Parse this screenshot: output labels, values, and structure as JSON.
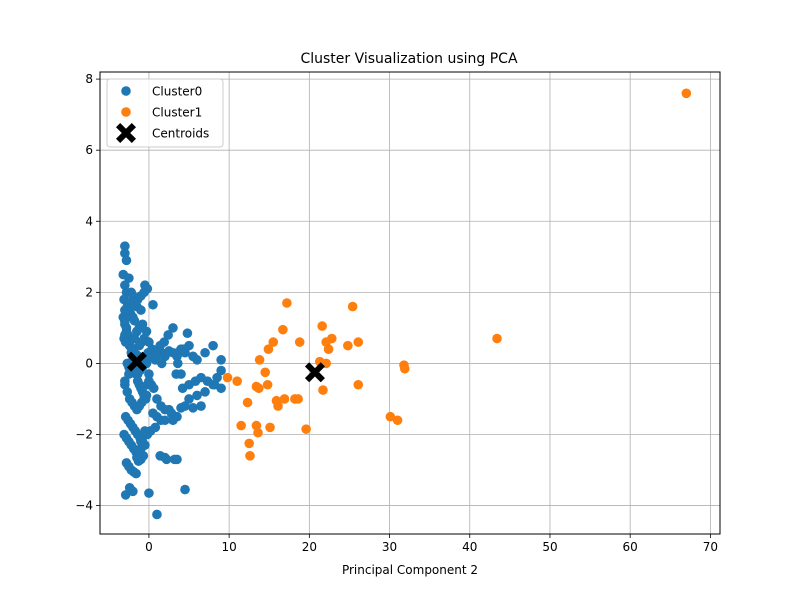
{
  "chart_data": {
    "type": "scatter",
    "title": "Cluster Visualization using PCA",
    "xlabel": "Principal Component 2",
    "ylabel": "",
    "xlim": [
      -6.1,
      71.2
    ],
    "ylim": [
      -4.8,
      8.2
    ],
    "xticks": [
      0,
      10,
      20,
      30,
      40,
      50,
      60,
      70
    ],
    "yticks": [
      -4,
      -2,
      0,
      2,
      4,
      6,
      8
    ],
    "grid": true,
    "legend_position": "top-left",
    "series": [
      {
        "name": "Cluster0",
        "color": "#1f77b4",
        "marker": "circle",
        "x": [
          -3.0,
          -3.0,
          -2.8,
          -3.2,
          -2.5,
          -3.0,
          -2.2,
          -2.8,
          -3.1,
          -2.0,
          -2.5,
          -2.7,
          -3.0,
          -2.3,
          -1.5,
          -1.0,
          -2.0,
          -3.0,
          -1.8,
          -1.2,
          -0.8,
          -1.5,
          0.5,
          -0.5,
          -2.8,
          -2.6,
          -3.1,
          -2.9,
          -2.4,
          -2.1,
          -1.9,
          -1.6,
          -1.3,
          -1.0,
          -0.7,
          -0.4,
          -0.1,
          0.2,
          -2.7,
          -2.5,
          -2.3,
          -2.0,
          -1.7,
          -1.4,
          -1.1,
          -0.8,
          -0.5,
          -0.2,
          0.1,
          0.4,
          0.8,
          1.2,
          1.6,
          2.0,
          2.5,
          3.0,
          3.5,
          4.0,
          4.5,
          5.0,
          5.5,
          6.0,
          7.0,
          8.0,
          9.0,
          -3.2,
          -3.0,
          -2.8,
          -2.6,
          -2.4,
          -2.2,
          -2.0,
          -1.8,
          -1.6,
          -1.4,
          -1.2,
          -1.0,
          -0.8,
          -0.6,
          -0.4,
          -0.2,
          0.0,
          -3.0,
          -2.7,
          -2.4,
          -2.1,
          -1.8,
          -1.5,
          -1.2,
          -0.9,
          -0.6,
          -0.3,
          0.0,
          0.3,
          0.6,
          1.0,
          1.5,
          2.0,
          2.5,
          3.0,
          3.5,
          4.0,
          4.5,
          5.0,
          5.5,
          6.0,
          6.5,
          7.0,
          8.0,
          8.5,
          9.0,
          -2.9,
          -2.6,
          -2.3,
          -2.0,
          -1.7,
          -1.4,
          -1.1,
          -0.8,
          -0.5,
          -0.2,
          0.5,
          1.0,
          1.5,
          2.0,
          2.8,
          3.4,
          4.2,
          5.0,
          5.8,
          6.5,
          7.3,
          8.2,
          9.0,
          -3.0,
          -2.7,
          -2.4,
          -2.1,
          -1.8,
          -1.5,
          -1.2,
          -0.9,
          -0.6,
          -0.3,
          0.0,
          0.4,
          0.9,
          1.4,
          1.9,
          2.4,
          3.0,
          3.6,
          4.3,
          4.8,
          -3.1,
          -2.8,
          -2.5,
          -2.2,
          -1.9,
          -1.6,
          -1.3,
          -1.0,
          -0.7,
          -0.4,
          0.2,
          0.8,
          1.4,
          2.2,
          3.2,
          4.5,
          -2.8,
          -2.5,
          -2.2,
          -1.9,
          -1.6,
          -1.3,
          -1.0,
          -0.7,
          0.0,
          1.0,
          2.0,
          3.5,
          -3.0,
          -2.6,
          -2.2,
          -1.8,
          -1.4,
          -1.0,
          -0.6,
          -0.2,
          1.6,
          3.6,
          4.0,
          -2.9,
          -2.4,
          -2.0,
          -1.5,
          -1.0,
          -0.5,
          -0.3,
          -2.7,
          -2.2,
          -3.0,
          -2.5
        ],
        "y": [
          3.3,
          3.1,
          2.9,
          2.5,
          2.4,
          2.2,
          2.0,
          2.0,
          1.8,
          1.9,
          1.7,
          1.6,
          1.5,
          1.4,
          1.6,
          1.5,
          1.3,
          1.2,
          1.2,
          1.0,
          1.1,
          0.9,
          1.65,
          2.2,
          1.0,
          0.8,
          0.7,
          0.6,
          0.5,
          0.4,
          0.3,
          0.25,
          0.2,
          0.15,
          0.1,
          0.2,
          0.3,
          0.25,
          0.0,
          -0.1,
          -0.15,
          -0.2,
          -0.25,
          -0.3,
          -0.2,
          -0.1,
          0.0,
          0.1,
          0.2,
          0.3,
          0.1,
          0.25,
          0.3,
          0.2,
          0.35,
          0.3,
          0.2,
          0.4,
          0.3,
          0.5,
          0.2,
          0.1,
          0.3,
          0.5,
          0.1,
          1.3,
          1.1,
          0.9,
          0.7,
          0.5,
          0.3,
          0.1,
          -0.1,
          -0.3,
          -0.5,
          -0.6,
          -0.7,
          -0.8,
          -0.9,
          -1.0,
          -0.6,
          -0.3,
          -0.6,
          -0.8,
          -1.0,
          -1.1,
          -1.2,
          -1.3,
          -1.2,
          -1.1,
          -1.0,
          -0.9,
          -0.5,
          -0.6,
          -0.7,
          -1.0,
          -1.2,
          -1.3,
          -1.3,
          -1.6,
          -1.5,
          -1.25,
          -1.2,
          -1.0,
          -1.25,
          -0.9,
          -1.2,
          -0.8,
          -0.6,
          -0.4,
          -0.2,
          -1.5,
          -1.6,
          -1.7,
          -1.8,
          -1.9,
          -2.0,
          -2.1,
          -2.2,
          -2.3,
          -2.0,
          -1.4,
          -1.5,
          -1.6,
          -1.6,
          -1.4,
          -0.3,
          -0.7,
          -0.6,
          -0.5,
          -0.4,
          -0.5,
          -0.6,
          -0.7,
          0.8,
          0.6,
          0.5,
          0.4,
          0.7,
          0.9,
          0.5,
          0.6,
          0.7,
          0.9,
          0.6,
          0.4,
          0.3,
          0.5,
          0.6,
          0.8,
          1.0,
          0.3,
          0.4,
          0.85,
          -2.0,
          -2.1,
          -2.2,
          -2.3,
          -2.4,
          -2.5,
          -2.6,
          -2.4,
          -2.3,
          -2.0,
          -1.9,
          -1.8,
          -2.6,
          -2.7,
          -2.7,
          -3.55,
          -2.8,
          -2.9,
          -3.0,
          -3.05,
          -3.1,
          -2.75,
          -2.7,
          -2.6,
          -3.65,
          -4.25,
          -2.65,
          -2.7,
          1.2,
          1.4,
          1.6,
          1.7,
          1.8,
          1.9,
          2.0,
          2.1,
          0.0,
          0.0,
          -0.3,
          -3.7,
          -3.5,
          -3.6,
          -2.65,
          -2.2,
          -1.9,
          0.0,
          1.5,
          1.6,
          -0.5,
          -0.3
        ]
      },
      {
        "name": "Cluster1",
        "color": "#ff7f0e",
        "marker": "circle",
        "x": [
          67.0,
          43.4,
          25.4,
          17.2,
          16.7,
          21.6,
          22.8,
          26.1,
          24.8,
          22.1,
          22.4,
          18.8,
          15.5,
          14.9,
          13.8,
          14.5,
          14.8,
          13.4,
          13.7,
          11.0,
          9.8,
          16.9,
          15.9,
          16.1,
          18.2,
          18.6,
          21.7,
          26.1,
          31.8,
          31.9,
          30.1,
          31.0,
          19.6,
          21.3,
          22.1,
          15.1,
          13.4,
          13.6,
          11.5,
          12.3,
          12.5,
          12.6
        ],
        "y": [
          7.6,
          0.7,
          1.6,
          1.7,
          0.95,
          1.05,
          0.7,
          0.6,
          0.5,
          0.6,
          0.4,
          0.6,
          0.6,
          0.4,
          0.1,
          -0.25,
          -0.6,
          -0.65,
          -0.7,
          -0.5,
          -0.4,
          -1.0,
          -1.05,
          -1.2,
          -1.0,
          -1.0,
          -0.75,
          -0.6,
          -0.05,
          -0.15,
          -1.5,
          -1.6,
          -1.85,
          0.05,
          0.0,
          -1.8,
          -1.75,
          -1.95,
          -1.75,
          -1.1,
          -2.25,
          -2.6
        ]
      },
      {
        "name": "Centroids",
        "color": "#000000",
        "marker": "x",
        "x": [
          -1.5,
          20.7
        ],
        "y": [
          0.05,
          -0.25
        ]
      }
    ]
  }
}
